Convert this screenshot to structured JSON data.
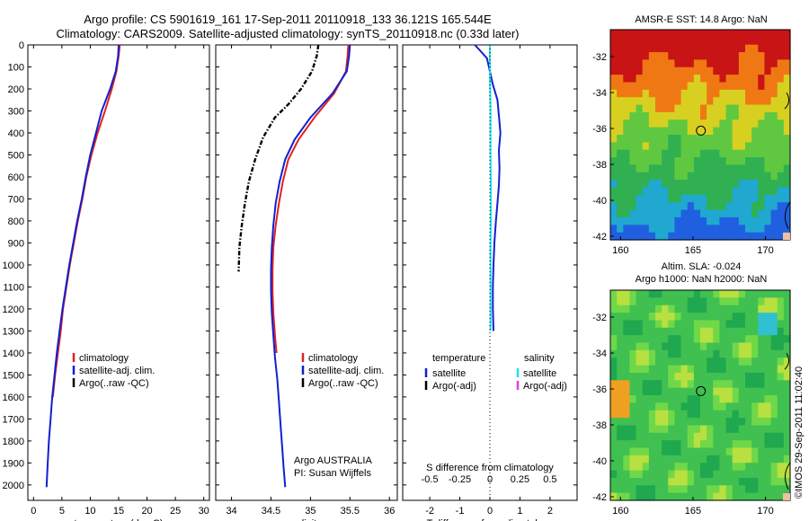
{
  "header": {
    "line1": "Argo profile: CS 5901619_161 17-Sep-2011 20110918_133 36.121S 165.544E",
    "line2": "Climatology: CARS2009. Satellite-adjusted climatology: synTS_20110918.nc (0.33d later)"
  },
  "chart_data": [
    {
      "type": "line",
      "id": "temperature",
      "xlabel": "temperature (deg C)",
      "xlim": [
        -1,
        31
      ],
      "xticks": [
        "0",
        "5",
        "10",
        "15",
        "20",
        "25",
        "30"
      ],
      "ylim": [
        0,
        2070
      ],
      "yticks": [
        "0",
        "100",
        "200",
        "300",
        "400",
        "500",
        "600",
        "700",
        "800",
        "900",
        "1000",
        "1100",
        "1200",
        "1300",
        "1400",
        "1500",
        "1600",
        "1700",
        "1800",
        "1900",
        "2000"
      ],
      "legend": [
        "climatology",
        "satellite-adj. clim.",
        "Argo(..raw -QC)"
      ],
      "series": [
        {
          "name": "climatology",
          "color": "#e02020",
          "x": [
            15.2,
            15.0,
            14.6,
            13.8,
            12.6,
            11.3,
            10.2,
            9.3,
            8.6,
            7.8,
            7.1,
            6.4,
            5.8,
            5.2,
            4.8,
            4.3,
            3.8,
            3.4
          ],
          "y": [
            0,
            50,
            120,
            200,
            300,
            400,
            500,
            600,
            700,
            800,
            900,
            1000,
            1100,
            1200,
            1300,
            1400,
            1500,
            1600
          ]
        },
        {
          "name": "satellite-adj. clim.",
          "color": "#1020d0",
          "x": [
            15.0,
            14.9,
            14.5,
            13.5,
            12.0,
            11.0,
            10.0,
            9.2,
            8.5,
            7.7,
            7.0,
            6.3,
            5.7,
            5.1,
            4.6,
            4.1,
            3.7,
            3.3,
            3.0,
            2.7,
            2.5,
            2.3
          ],
          "y": [
            0,
            50,
            120,
            200,
            300,
            400,
            500,
            600,
            700,
            800,
            900,
            1000,
            1100,
            1200,
            1300,
            1400,
            1500,
            1600,
            1700,
            1800,
            1900,
            2010
          ]
        },
        {
          "name": "Argo(..raw -QC)",
          "color": "#000000",
          "x": [],
          "y": []
        }
      ]
    },
    {
      "type": "line",
      "id": "salinity",
      "xlabel": "salinity",
      "xlim": [
        33.8,
        36.1
      ],
      "xticks": [
        "34",
        "34.5",
        "35",
        "35.5",
        "36"
      ],
      "ylim": [
        0,
        2070
      ],
      "legend": [
        "climatology",
        "satellite-adj. clim.",
        "Argo(..raw -QC)"
      ],
      "annotation": [
        "Argo AUSTRALIA",
        "PI: Susan Wijffels"
      ],
      "series": [
        {
          "name": "climatology",
          "color": "#e02020",
          "x": [
            35.48,
            35.47,
            35.45,
            35.3,
            35.05,
            34.85,
            34.72,
            34.65,
            34.6,
            34.56,
            34.53,
            34.52,
            34.52,
            34.53,
            34.55,
            34.57
          ],
          "y": [
            0,
            50,
            120,
            220,
            330,
            430,
            520,
            620,
            720,
            820,
            920,
            1020,
            1120,
            1220,
            1320,
            1400
          ]
        },
        {
          "name": "satellite-adj. clim.",
          "color": "#1020d0",
          "x": [
            35.5,
            35.49,
            35.46,
            35.28,
            35.0,
            34.8,
            34.68,
            34.61,
            34.56,
            34.53,
            34.51,
            34.5,
            34.5,
            34.51,
            34.53,
            34.55,
            34.58,
            34.6,
            34.62,
            34.64,
            34.66,
            34.68
          ],
          "y": [
            0,
            50,
            120,
            220,
            330,
            430,
            520,
            620,
            720,
            820,
            920,
            1020,
            1120,
            1220,
            1320,
            1420,
            1520,
            1620,
            1720,
            1820,
            1920,
            2010
          ]
        },
        {
          "name": "Argo(..raw -QC)",
          "color": "#000000",
          "x": [
            35.1,
            35.08,
            35.02,
            34.88,
            34.72,
            34.55,
            34.4,
            34.3,
            34.22,
            34.17,
            34.13,
            34.1,
            34.09
          ],
          "y": [
            0,
            50,
            120,
            200,
            270,
            330,
            420,
            520,
            620,
            720,
            820,
            920,
            1030
          ]
        }
      ]
    },
    {
      "type": "line",
      "id": "difference",
      "xlabel": "T difference from climatology",
      "xlabel_top": "S difference from climatology",
      "xlim": [
        -2.9,
        2.9
      ],
      "xticks": [
        "-2",
        "-1",
        "0",
        "1",
        "2"
      ],
      "xticks_top": [
        "-0.5",
        "-0.25",
        "0",
        "0.25",
        "0.5"
      ],
      "ylim": [
        0,
        2070
      ],
      "legend_temperature": {
        "title": "temperature",
        "items": [
          "satellite",
          "Argo(-adj)"
        ]
      },
      "legend_salinity": {
        "title": "salinity",
        "items": [
          "satellite",
          "Argo(-adj)"
        ]
      },
      "series": [
        {
          "name": "temperature satellite",
          "color": "#1020d0",
          "x": [
            -0.5,
            -0.1,
            0.0,
            0.1,
            0.25,
            0.3,
            0.35,
            0.3,
            0.32,
            0.3,
            0.25,
            0.2,
            0.15,
            0.12,
            0.1,
            0.1,
            0.12
          ],
          "y": [
            0,
            60,
            120,
            180,
            250,
            320,
            400,
            480,
            560,
            640,
            720,
            800,
            900,
            1000,
            1100,
            1200,
            1300
          ]
        },
        {
          "name": "salinity satellite",
          "color": "#20e0f0",
          "x": [
            0.0,
            0.0,
            0.01,
            0.02,
            0.02,
            0.02,
            0.03,
            0.03,
            0.03,
            0.02,
            0.02,
            0.02,
            0.02,
            0.02
          ],
          "y": [
            0,
            100,
            200,
            300,
            400,
            500,
            600,
            700,
            800,
            900,
            1000,
            1100,
            1200,
            1300
          ]
        }
      ]
    }
  ],
  "maps": {
    "sst": {
      "title": "AMSR-E SST: 14.8  Argo: NaN",
      "yticks": [
        "-32",
        "-34",
        "-36",
        "-38",
        "-40",
        "-42"
      ],
      "xticks": [
        "160",
        "165",
        "170"
      ]
    },
    "sla": {
      "title_line1": "Altim. SLA: -0.024",
      "title_line2": "Argo h1000: NaN h2000: NaN",
      "yticks": [
        "-32",
        "-34",
        "-36",
        "-38",
        "-40",
        "-42"
      ],
      "xticks": [
        "160",
        "165",
        "170"
      ]
    }
  },
  "footer": {
    "credit": "©IMOS 29-Sep-2011 11:02:40"
  }
}
